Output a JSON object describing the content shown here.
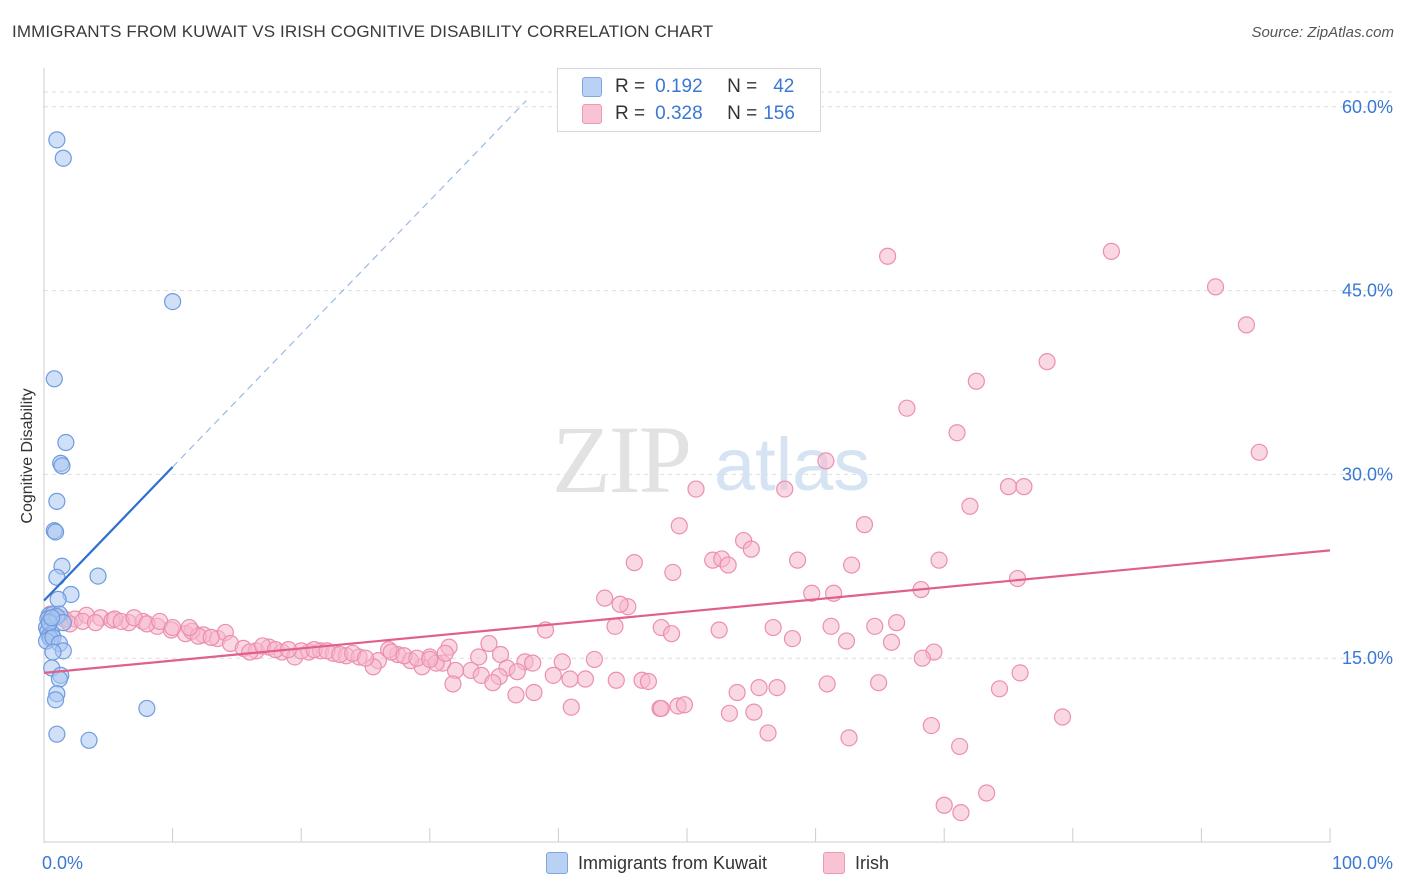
{
  "header": {
    "title": "IMMIGRANTS FROM KUWAIT VS IRISH COGNITIVE DISABILITY CORRELATION CHART",
    "source": "Source: ZipAtlas.com"
  },
  "watermark": {
    "zip": "ZIP",
    "atlas": "atlas"
  },
  "legend_top": [
    {
      "r_label": "R =",
      "r_value": "0.192",
      "n_label": "N =",
      "n_value": "42"
    },
    {
      "r_label": "R =",
      "r_value": "0.328",
      "n_label": "N =",
      "n_value": "156"
    }
  ],
  "legend_bottom": [
    {
      "label": "Immigrants from Kuwait"
    },
    {
      "label": "Irish"
    }
  ],
  "colors": {
    "blue_fill": "#a9c6f0",
    "blue_stroke": "#6f9be0",
    "blue_line": "#2f6fd0",
    "pink_fill": "#f6b8cc",
    "pink_stroke": "#ec8fae",
    "pink_line": "#e0608a",
    "tick_label": "#3a78d4",
    "grid": "#dddddd"
  },
  "chart_data": {
    "type": "scatter",
    "title": "IMMIGRANTS FROM KUWAIT VS IRISH COGNITIVE DISABILITY CORRELATION CHART",
    "xlabel": "",
    "ylabel": "Cognitive Disability",
    "xlim": [
      0,
      100
    ],
    "ylim": [
      0,
      63
    ],
    "x_tick_labels": [
      "0.0%",
      "100.0%"
    ],
    "y_ticks": [
      15,
      30,
      45,
      60
    ],
    "y_tick_labels": [
      "15.0%",
      "30.0%",
      "45.0%",
      "60.0%"
    ],
    "series": [
      {
        "name": "Immigrants from Kuwait",
        "color": "blue",
        "R": 0.192,
        "N": 42,
        "trendline": {
          "x0": 0,
          "y0": 19.7,
          "x1": 10,
          "y1": 30.6,
          "dashed_to_x": 37.5,
          "dashed_to_y": 60.5
        },
        "points": [
          [
            1.0,
            57.3
          ],
          [
            1.5,
            55.8
          ],
          [
            10.0,
            44.1
          ],
          [
            0.8,
            37.8
          ],
          [
            1.7,
            32.6
          ],
          [
            1.3,
            30.9
          ],
          [
            1.4,
            30.7
          ],
          [
            1.0,
            27.8
          ],
          [
            0.8,
            25.4
          ],
          [
            0.9,
            25.3
          ],
          [
            1.4,
            22.5
          ],
          [
            4.2,
            21.7
          ],
          [
            1.0,
            21.6
          ],
          [
            2.1,
            20.2
          ],
          [
            1.1,
            19.8
          ],
          [
            0.4,
            18.5
          ],
          [
            0.7,
            18.6
          ],
          [
            1.2,
            18.6
          ],
          [
            0.3,
            18.2
          ],
          [
            0.5,
            18.0
          ],
          [
            1.0,
            18.4
          ],
          [
            1.5,
            17.9
          ],
          [
            0.2,
            17.5
          ],
          [
            0.3,
            17.2
          ],
          [
            0.6,
            17.0
          ],
          [
            0.4,
            16.8
          ],
          [
            0.5,
            16.6
          ],
          [
            0.2,
            16.4
          ],
          [
            0.7,
            16.7
          ],
          [
            1.2,
            16.2
          ],
          [
            1.5,
            15.6
          ],
          [
            0.7,
            15.5
          ],
          [
            0.6,
            14.2
          ],
          [
            1.3,
            13.6
          ],
          [
            1.2,
            13.3
          ],
          [
            1.0,
            12.1
          ],
          [
            0.9,
            11.6
          ],
          [
            8.0,
            10.9
          ],
          [
            1.0,
            8.8
          ],
          [
            3.5,
            8.3
          ],
          [
            0.4,
            17.9
          ],
          [
            0.6,
            18.3
          ]
        ]
      },
      {
        "name": "Irish",
        "color": "pink",
        "R": 0.328,
        "N": 156,
        "trendline": {
          "x0": 0,
          "y0": 13.8,
          "x1": 100,
          "y1": 23.8
        },
        "points": [
          [
            83.0,
            48.2
          ],
          [
            65.6,
            47.8
          ],
          [
            91.1,
            45.3
          ],
          [
            93.5,
            42.2
          ],
          [
            78.0,
            39.2
          ],
          [
            72.5,
            37.6
          ],
          [
            67.1,
            35.4
          ],
          [
            71.0,
            33.4
          ],
          [
            94.5,
            31.8
          ],
          [
            60.8,
            31.1
          ],
          [
            50.7,
            28.8
          ],
          [
            57.6,
            28.8
          ],
          [
            75.0,
            29.0
          ],
          [
            76.2,
            29.0
          ],
          [
            72.0,
            27.4
          ],
          [
            63.8,
            25.9
          ],
          [
            49.4,
            25.8
          ],
          [
            54.4,
            24.6
          ],
          [
            55.0,
            23.9
          ],
          [
            52.0,
            23.0
          ],
          [
            52.7,
            23.1
          ],
          [
            53.2,
            22.6
          ],
          [
            58.6,
            23.0
          ],
          [
            69.6,
            23.0
          ],
          [
            45.9,
            22.8
          ],
          [
            62.8,
            22.6
          ],
          [
            48.9,
            22.0
          ],
          [
            75.7,
            21.5
          ],
          [
            68.2,
            20.6
          ],
          [
            61.4,
            20.3
          ],
          [
            59.7,
            20.3
          ],
          [
            43.6,
            19.9
          ],
          [
            45.4,
            19.2
          ],
          [
            44.8,
            19.4
          ],
          [
            66.3,
            17.9
          ],
          [
            64.6,
            17.6
          ],
          [
            56.7,
            17.5
          ],
          [
            61.2,
            17.6
          ],
          [
            52.5,
            17.3
          ],
          [
            48.0,
            17.5
          ],
          [
            48.8,
            17.0
          ],
          [
            39.0,
            17.3
          ],
          [
            44.4,
            17.6
          ],
          [
            58.2,
            16.6
          ],
          [
            62.4,
            16.4
          ],
          [
            65.9,
            16.3
          ],
          [
            34.6,
            16.2
          ],
          [
            31.5,
            15.9
          ],
          [
            20.6,
            15.5
          ],
          [
            69.2,
            15.5
          ],
          [
            68.3,
            15.0
          ],
          [
            33.8,
            15.1
          ],
          [
            35.5,
            15.3
          ],
          [
            37.4,
            14.7
          ],
          [
            30.0,
            15.1
          ],
          [
            42.8,
            14.9
          ],
          [
            33.2,
            14.0
          ],
          [
            38.0,
            14.6
          ],
          [
            40.3,
            14.7
          ],
          [
            26.0,
            14.8
          ],
          [
            25.6,
            14.3
          ],
          [
            31.0,
            14.6
          ],
          [
            29.4,
            14.3
          ],
          [
            36.0,
            14.2
          ],
          [
            32.0,
            14.0
          ],
          [
            36.8,
            13.9
          ],
          [
            34.0,
            13.6
          ],
          [
            35.4,
            13.5
          ],
          [
            39.6,
            13.6
          ],
          [
            42.1,
            13.3
          ],
          [
            44.5,
            13.2
          ],
          [
            46.5,
            13.2
          ],
          [
            40.9,
            13.3
          ],
          [
            34.9,
            13.0
          ],
          [
            47.0,
            13.1
          ],
          [
            64.9,
            13.0
          ],
          [
            74.3,
            12.5
          ],
          [
            75.9,
            13.8
          ],
          [
            60.9,
            12.9
          ],
          [
            55.6,
            12.6
          ],
          [
            57.0,
            12.6
          ],
          [
            53.9,
            12.2
          ],
          [
            38.1,
            12.2
          ],
          [
            36.7,
            12.0
          ],
          [
            41.0,
            11.0
          ],
          [
            49.3,
            11.1
          ],
          [
            47.9,
            10.9
          ],
          [
            49.8,
            11.2
          ],
          [
            53.3,
            10.5
          ],
          [
            55.2,
            10.6
          ],
          [
            79.2,
            10.2
          ],
          [
            69.0,
            9.5
          ],
          [
            56.3,
            8.9
          ],
          [
            62.6,
            8.5
          ],
          [
            71.2,
            7.8
          ],
          [
            73.3,
            4.0
          ],
          [
            71.3,
            2.4
          ],
          [
            70.0,
            3.0
          ],
          [
            48.0,
            10.9
          ],
          [
            31.8,
            12.9
          ],
          [
            0.5,
            18.6
          ],
          [
            1.6,
            18.2
          ],
          [
            2.4,
            18.2
          ],
          [
            3.3,
            18.5
          ],
          [
            4.4,
            18.3
          ],
          [
            5.3,
            18.1
          ],
          [
            6.6,
            17.9
          ],
          [
            7.7,
            18.0
          ],
          [
            8.8,
            17.6
          ],
          [
            9.9,
            17.3
          ],
          [
            11.0,
            17.0
          ],
          [
            12.4,
            16.9
          ],
          [
            13.5,
            16.6
          ],
          [
            14.1,
            17.1
          ],
          [
            2.0,
            17.8
          ],
          [
            3.0,
            18.0
          ],
          [
            4.0,
            17.9
          ],
          [
            5.5,
            18.2
          ],
          [
            6.0,
            18.0
          ],
          [
            7.0,
            18.3
          ],
          [
            8.0,
            17.8
          ],
          [
            9.0,
            18.0
          ],
          [
            10.0,
            17.5
          ],
          [
            11.5,
            17.2
          ],
          [
            12.0,
            16.8
          ],
          [
            13.0,
            16.7
          ],
          [
            14.5,
            16.2
          ],
          [
            15.5,
            15.8
          ],
          [
            16.5,
            15.6
          ],
          [
            17.5,
            15.9
          ],
          [
            18.5,
            15.5
          ],
          [
            19.5,
            15.1
          ],
          [
            20.0,
            15.6
          ],
          [
            21.5,
            15.6
          ],
          [
            22.5,
            15.4
          ],
          [
            23.5,
            15.2
          ],
          [
            24.5,
            15.1
          ],
          [
            27.5,
            15.3
          ],
          [
            28.5,
            14.8
          ],
          [
            30.5,
            14.6
          ],
          [
            31.2,
            15.4
          ],
          [
            16.0,
            15.5
          ],
          [
            17.0,
            16.0
          ],
          [
            18.0,
            15.7
          ],
          [
            19.0,
            15.7
          ],
          [
            21.0,
            15.7
          ],
          [
            22.0,
            15.6
          ],
          [
            23.0,
            15.3
          ],
          [
            24.0,
            15.4
          ],
          [
            25.0,
            15.0
          ],
          [
            26.8,
            15.7
          ],
          [
            27.0,
            15.5
          ],
          [
            28.0,
            15.2
          ],
          [
            29.0,
            15.0
          ],
          [
            30.0,
            14.9
          ],
          [
            11.3,
            17.5
          ]
        ]
      }
    ]
  }
}
